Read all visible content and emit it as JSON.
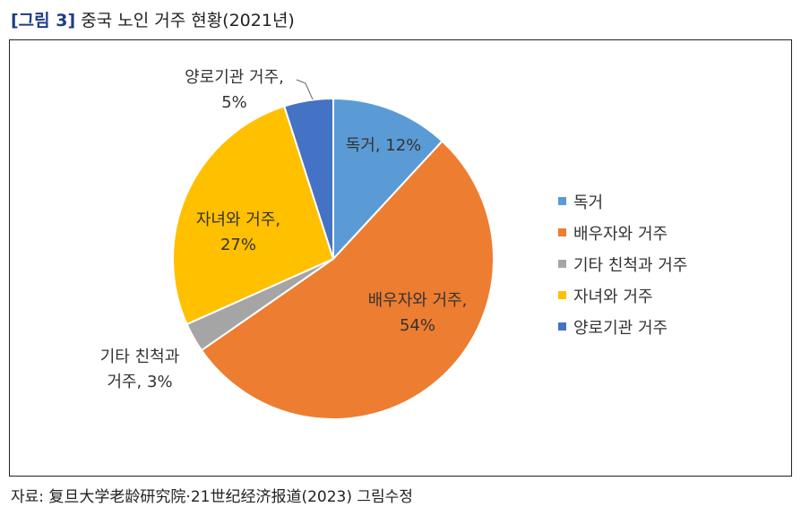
{
  "header": {
    "figure_number": "[그림 3]",
    "title": "중국 노인 거주 현황(2021년)"
  },
  "chart_data": {
    "type": "pie",
    "categories": [
      "독거",
      "배우자와 거주",
      "기타 친척과 거주",
      "자녀와 거주",
      "양로기관 거주"
    ],
    "values": [
      12,
      54,
      3,
      27,
      5
    ],
    "unit": "%",
    "colors": [
      "#5b9bd5",
      "#ed7d31",
      "#a5a5a5",
      "#ffc000",
      "#4472c4"
    ],
    "data_labels": [
      [
        "독거, 12%"
      ],
      [
        "배우자와 거주,",
        "54%"
      ],
      [
        "기타 친척과",
        "거주, 3%"
      ],
      [
        "자녀와 거주,",
        "27%"
      ],
      [
        "양로기관 거주,",
        "5%"
      ]
    ],
    "legend": {
      "position": "right",
      "entries": [
        "독거",
        "배우자와 거주",
        "기타 친척과 거주",
        "자녀와 거주",
        "양로기관 거주"
      ]
    }
  },
  "footer": {
    "source": "자료: 复旦大学老龄研究院·21世纪经济报道(2023) 그림수정"
  }
}
